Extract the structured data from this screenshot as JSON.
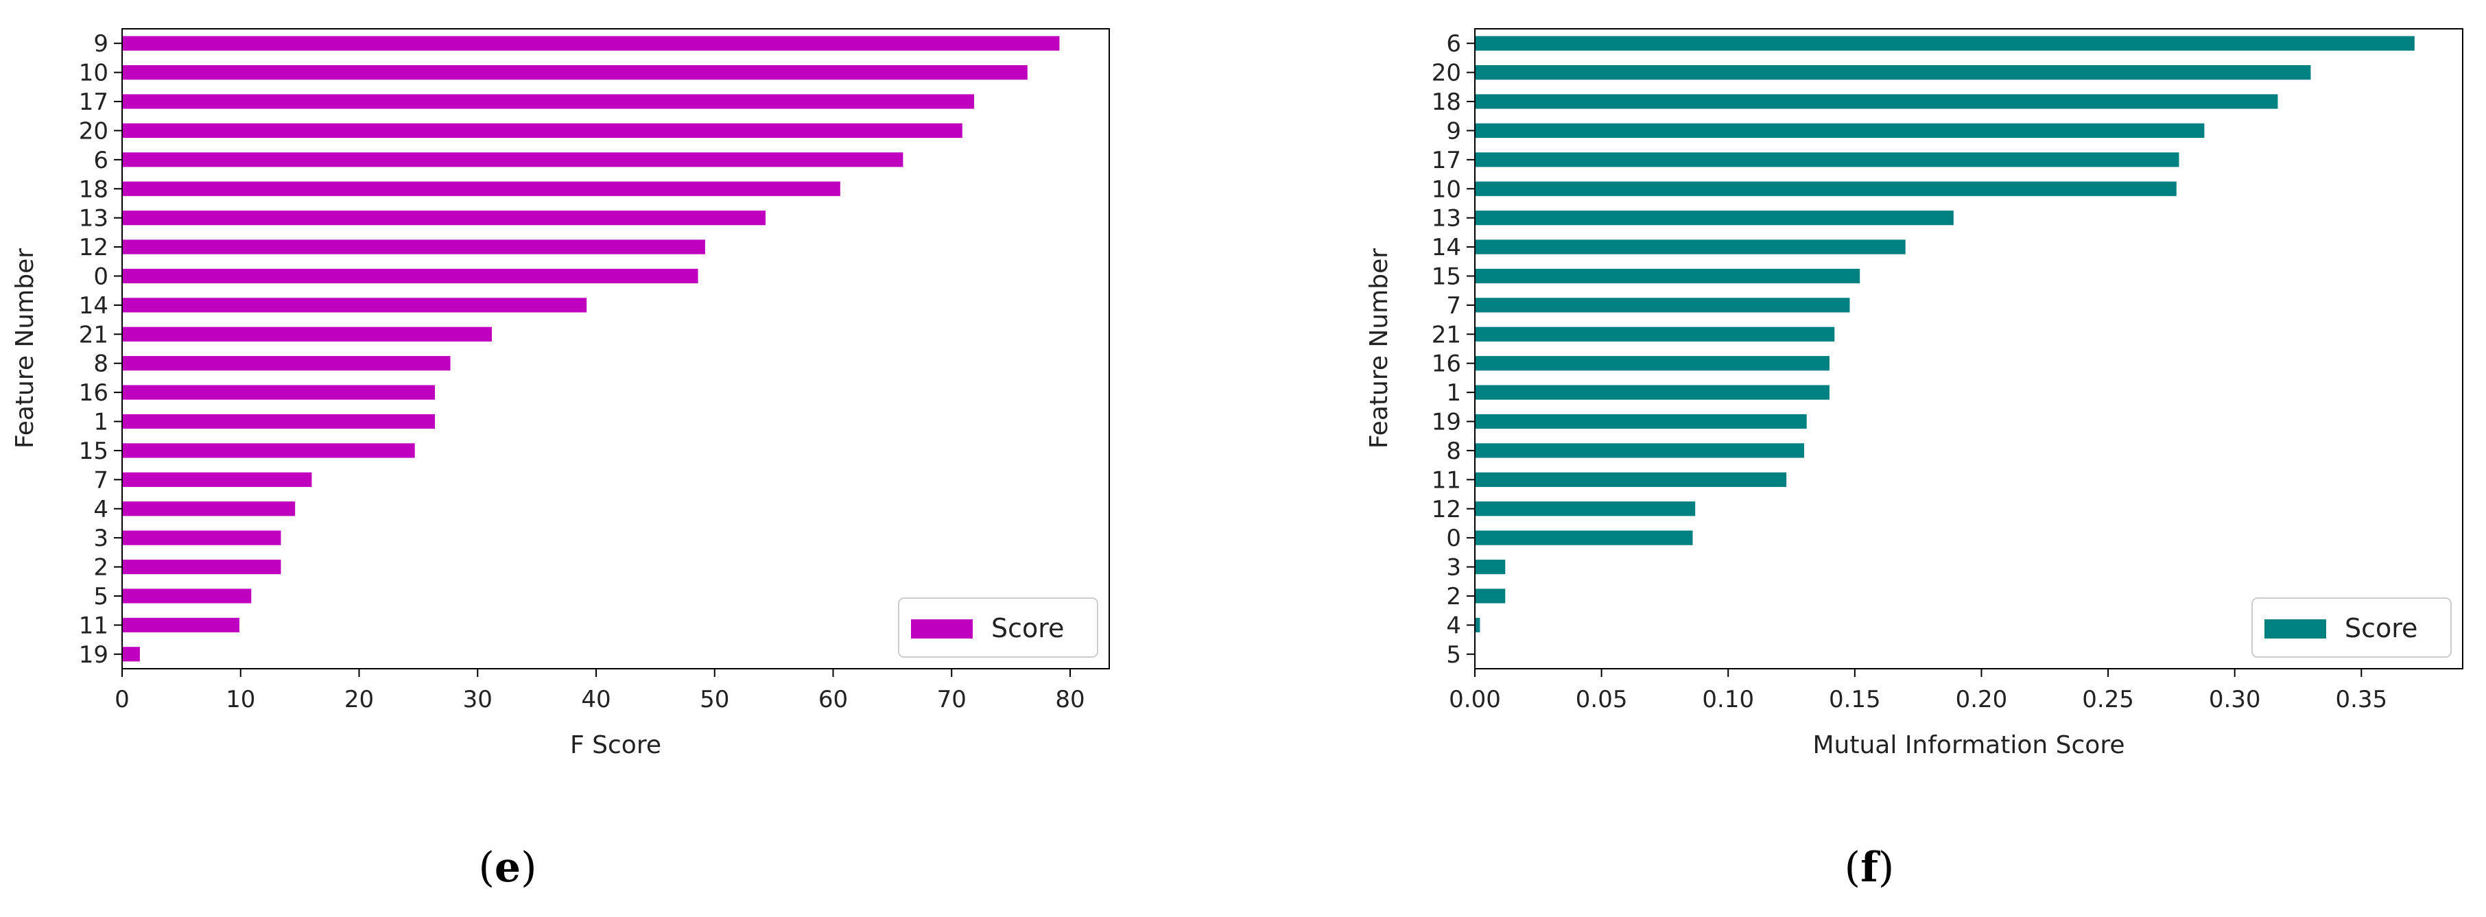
{
  "chart_data": [
    {
      "type": "bar",
      "orientation": "horizontal",
      "caption_letter": "e",
      "color": "#bf00bf",
      "title": "",
      "xlabel": "F Score",
      "ylabel": "Feature Number",
      "xlim": [
        0,
        83.3
      ],
      "xticks": [
        "0",
        "10",
        "20",
        "30",
        "40",
        "50",
        "60",
        "70",
        "80"
      ],
      "legend": {
        "label": "Score",
        "position": "lower-right"
      },
      "categories": [
        "9",
        "10",
        "17",
        "20",
        "6",
        "18",
        "13",
        "12",
        "0",
        "14",
        "21",
        "8",
        "16",
        "1",
        "15",
        "7",
        "4",
        "3",
        "2",
        "5",
        "11",
        "19"
      ],
      "values": [
        79.1,
        76.4,
        71.9,
        70.9,
        65.9,
        60.6,
        54.3,
        49.2,
        48.6,
        39.2,
        31.2,
        27.7,
        26.4,
        26.4,
        24.7,
        16.0,
        14.6,
        13.4,
        13.4,
        10.9,
        9.9,
        1.5
      ]
    },
    {
      "type": "bar",
      "orientation": "horizontal",
      "caption_letter": "f",
      "color": "#008080",
      "title": "",
      "xlabel": "Mutual Information Score",
      "ylabel": "Feature Number",
      "xlim": [
        0,
        0.39
      ],
      "xticks": [
        "0.00",
        "0.05",
        "0.10",
        "0.15",
        "0.20",
        "0.25",
        "0.30",
        "0.35"
      ],
      "legend": {
        "label": "Score",
        "position": "lower-right"
      },
      "categories": [
        "6",
        "20",
        "18",
        "9",
        "17",
        "10",
        "13",
        "14",
        "15",
        "7",
        "21",
        "16",
        "1",
        "19",
        "8",
        "11",
        "12",
        "0",
        "3",
        "2",
        "4",
        "5"
      ],
      "values": [
        0.371,
        0.33,
        0.317,
        0.288,
        0.278,
        0.277,
        0.189,
        0.17,
        0.152,
        0.148,
        0.142,
        0.14,
        0.14,
        0.131,
        0.13,
        0.123,
        0.087,
        0.086,
        0.012,
        0.012,
        0.002,
        0.0
      ]
    }
  ]
}
